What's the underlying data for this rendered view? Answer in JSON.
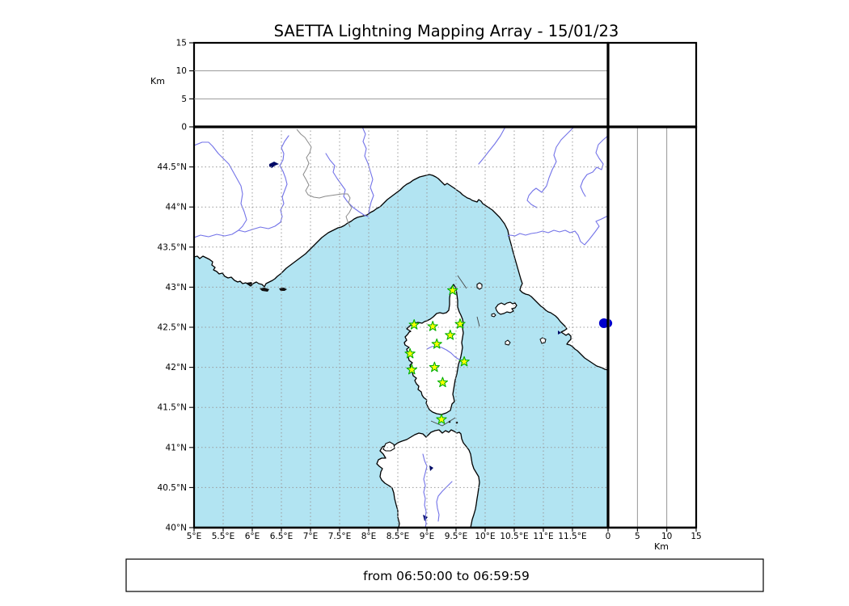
{
  "title": "SAETTA Lightning Mapping Array - 15/01/23",
  "footer": {
    "time_range": "from 06:50:00 to 06:59:59"
  },
  "axes": {
    "altitude_top": {
      "unit_label": "Km",
      "range_km": [
        0,
        15
      ],
      "ticks": [
        {
          "v": 0,
          "label": "0"
        },
        {
          "v": 5,
          "label": "5"
        },
        {
          "v": 10,
          "label": "10"
        },
        {
          "v": 15,
          "label": "15"
        }
      ]
    },
    "altitude_right": {
      "unit_label": "Km",
      "range_km": [
        0,
        15
      ],
      "ticks": [
        {
          "v": 0,
          "label": "0"
        },
        {
          "v": 5,
          "label": "5"
        },
        {
          "v": 10,
          "label": "10"
        },
        {
          "v": 15,
          "label": "15"
        }
      ]
    },
    "map_longitude": {
      "range_deg": [
        5,
        12.11
      ],
      "ticks": [
        {
          "v": 5,
          "label": "5°E"
        },
        {
          "v": 5.5,
          "label": "5.5°E"
        },
        {
          "v": 6,
          "label": "6°E"
        },
        {
          "v": 6.5,
          "label": "6.5°E"
        },
        {
          "v": 7,
          "label": "7°E"
        },
        {
          "v": 7.5,
          "label": "7.5°E"
        },
        {
          "v": 8,
          "label": "8°E"
        },
        {
          "v": 8.5,
          "label": "8.5°E"
        },
        {
          "v": 9,
          "label": "9°E"
        },
        {
          "v": 9.5,
          "label": "9.5°E"
        },
        {
          "v": 10,
          "label": "10°E"
        },
        {
          "v": 10.5,
          "label": "10.5°E"
        },
        {
          "v": 11,
          "label": "11°E"
        },
        {
          "v": 11.5,
          "label": "11.5°E"
        }
      ]
    },
    "map_latitude": {
      "range_deg": [
        40,
        45
      ],
      "ticks": [
        {
          "v": 40,
          "label": "40°N"
        },
        {
          "v": 40.5,
          "label": "40.5°N"
        },
        {
          "v": 41,
          "label": "41°N"
        },
        {
          "v": 41.5,
          "label": "41.5°N"
        },
        {
          "v": 42,
          "label": "42°N"
        },
        {
          "v": 42.5,
          "label": "42.5°N"
        },
        {
          "v": 43,
          "label": "43°N"
        },
        {
          "v": 43.5,
          "label": "43.5°N"
        },
        {
          "v": 44,
          "label": "44°N"
        },
        {
          "v": 44.5,
          "label": "44.5°N"
        }
      ]
    }
  },
  "stations": [
    {
      "lon": 9.44,
      "lat": 42.96
    },
    {
      "lon": 8.78,
      "lat": 42.53
    },
    {
      "lon": 9.1,
      "lat": 42.51
    },
    {
      "lon": 9.57,
      "lat": 42.54
    },
    {
      "lon": 9.4,
      "lat": 42.4
    },
    {
      "lon": 9.17,
      "lat": 42.29
    },
    {
      "lon": 8.71,
      "lat": 42.17
    },
    {
      "lon": 9.64,
      "lat": 42.07
    },
    {
      "lon": 9.13,
      "lat": 42.0
    },
    {
      "lon": 8.74,
      "lat": 41.97
    },
    {
      "lon": 9.27,
      "lat": 41.81
    },
    {
      "lon": 9.25,
      "lat": 41.35
    }
  ],
  "sources": [
    {
      "lon": 12.04,
      "lat": 42.55,
      "alt_km": 0
    }
  ],
  "colors": {
    "sea": "#b2e4f2",
    "land": "#ffffff",
    "station_fill": "#ffff00",
    "station_edge": "#00b000",
    "source": "#0000cc",
    "river": "#7373e8",
    "border_line": "#8a8a8a",
    "lake": "#000a66",
    "islet": "#111111"
  }
}
